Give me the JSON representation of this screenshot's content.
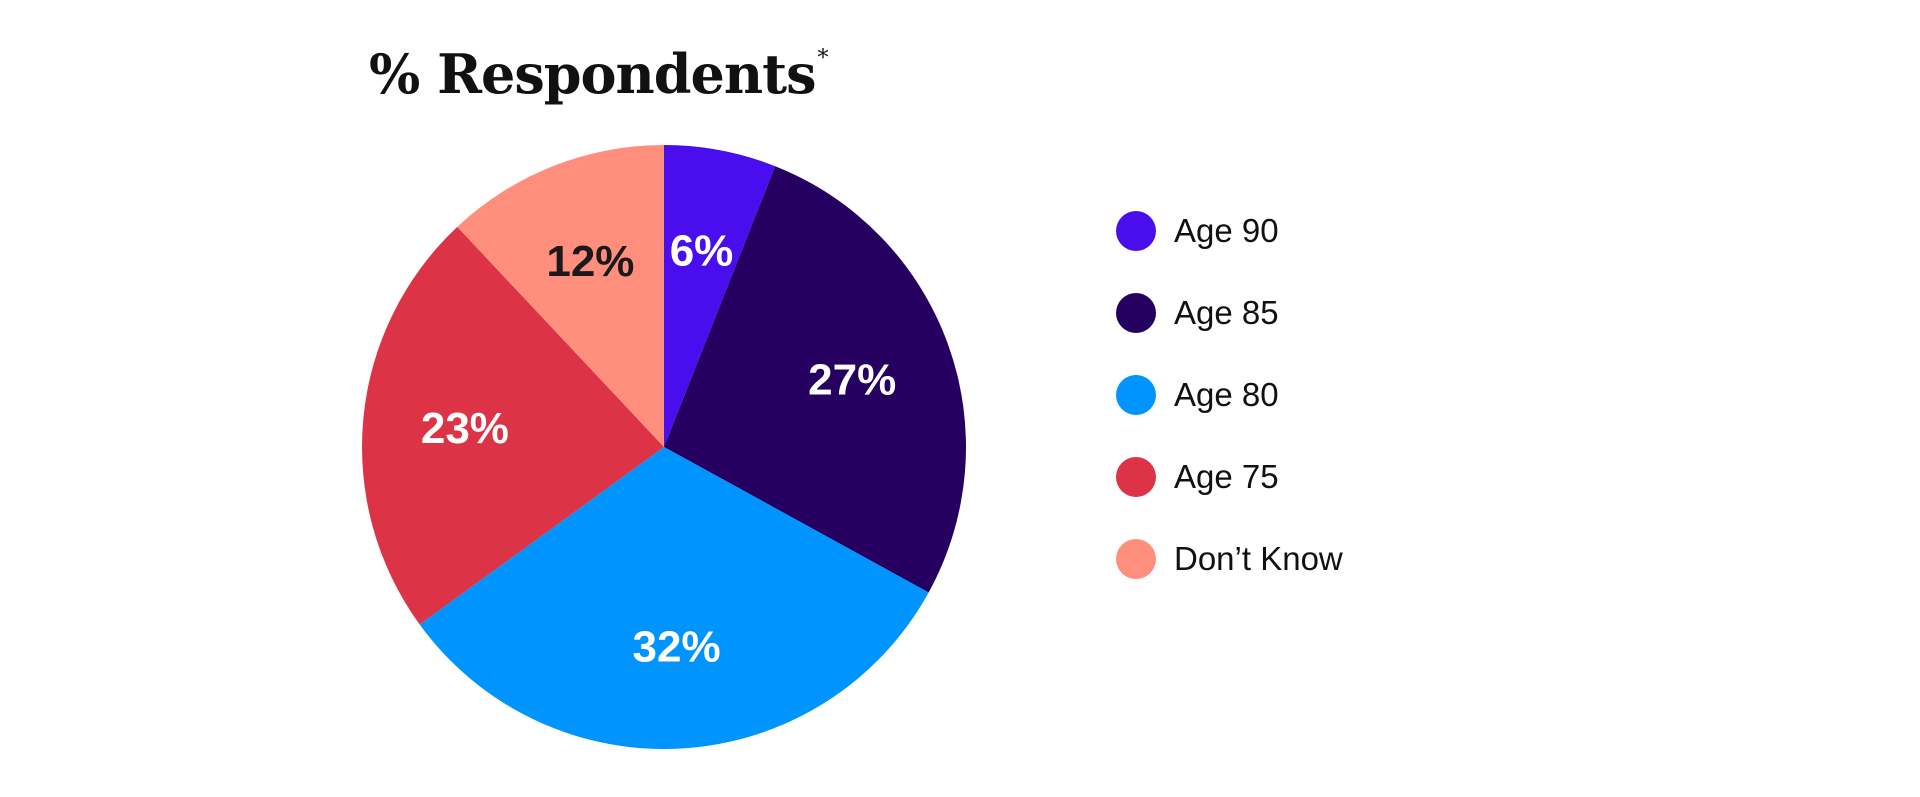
{
  "chart_data": {
    "type": "pie",
    "title": "% Respondents",
    "title_footnote_mark": "*",
    "start_angle": "top (12 o'clock), clockwise",
    "legend_position": "right",
    "slices": [
      {
        "name": "Age 90",
        "value": 6,
        "label": "6%",
        "color": "#4A0DED",
        "label_color": "#FFFFFF"
      },
      {
        "name": "Age 85",
        "value": 27,
        "label": "27%",
        "color": "#260060",
        "label_color": "#FFFFFF"
      },
      {
        "name": "Age 80",
        "value": 32,
        "label": "32%",
        "color": "#0094FF",
        "label_color": "#FFFFFF"
      },
      {
        "name": "Age 75",
        "value": 23,
        "label": "23%",
        "color": "#DC3346",
        "label_color": "#FFFFFF"
      },
      {
        "name": "Don’t Know",
        "value": 12,
        "label": "12%",
        "color": "#FF8E7C",
        "label_color": "#1A1A1A"
      }
    ]
  }
}
